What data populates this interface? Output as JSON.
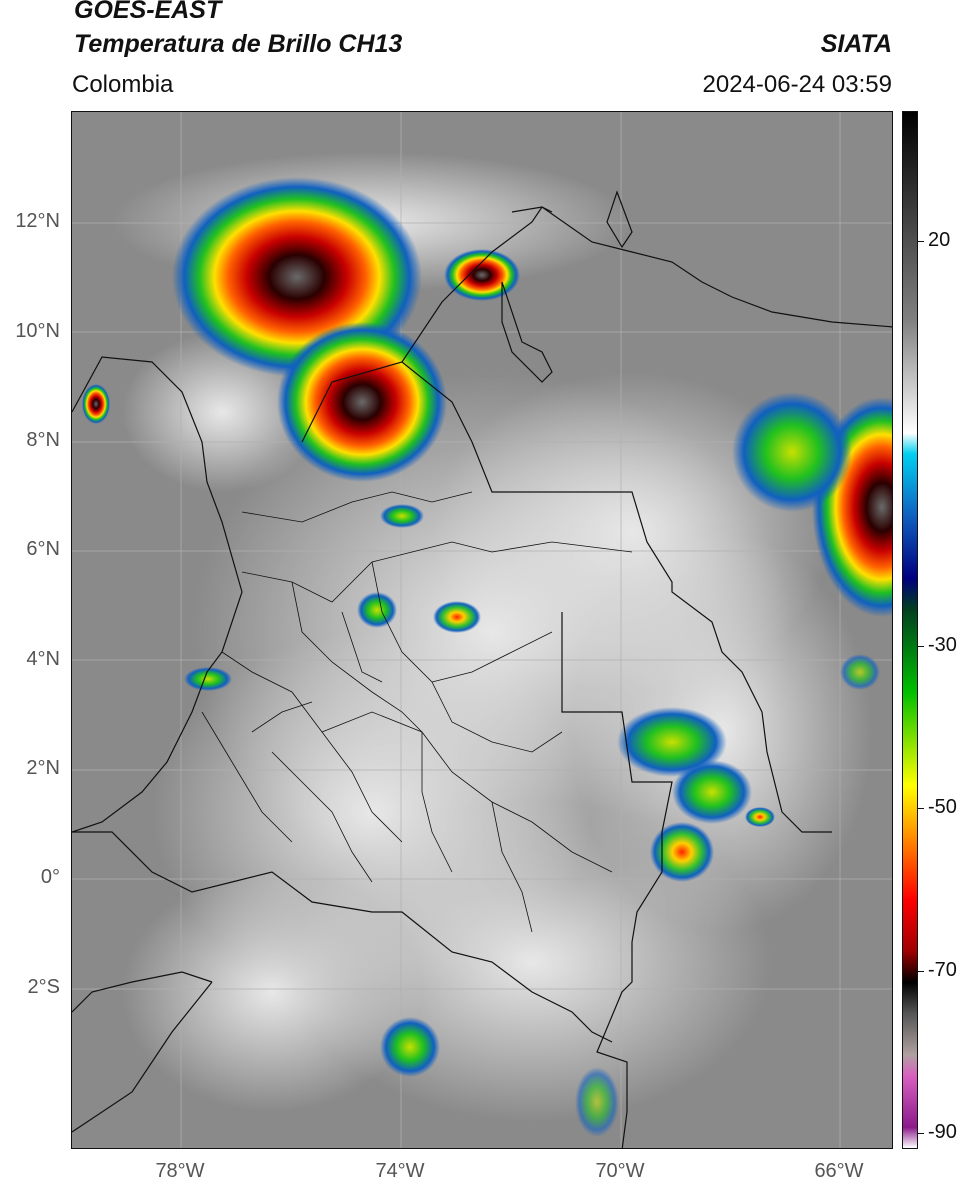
{
  "header": {
    "title_line1": "GOES-EAST",
    "title_line2": "Temperatura de Brillo CH13",
    "region": "Colombia",
    "agency": "SIATA",
    "timestamp": "2024-06-24 03:59"
  },
  "map": {
    "longitude_labels": [
      "78°W",
      "74°W",
      "70°W",
      "66°W"
    ],
    "latitude_labels": [
      "12°N",
      "10°N",
      "8°N",
      "6°N",
      "4°N",
      "2°N",
      "0°",
      "2°S"
    ],
    "background_color": "#8a8a8a"
  },
  "colorbar": {
    "tick_labels": [
      "20",
      "-30",
      "-50",
      "-70",
      "-90"
    ],
    "tick_values": [
      20,
      -30,
      -50,
      -70,
      -90
    ],
    "range": [
      -92,
      36
    ],
    "colors": [
      "#ffffff",
      "#8b1a8b",
      "#d860c0",
      "#b0a0a0",
      "#555555",
      "#000000",
      "#a00000",
      "#ff0000",
      "#ff8c00",
      "#ffff00",
      "#00c000",
      "#004020",
      "#000080",
      "#1060c0",
      "#00d0f0",
      "#ffffff",
      "#808080",
      "#000000"
    ]
  }
}
